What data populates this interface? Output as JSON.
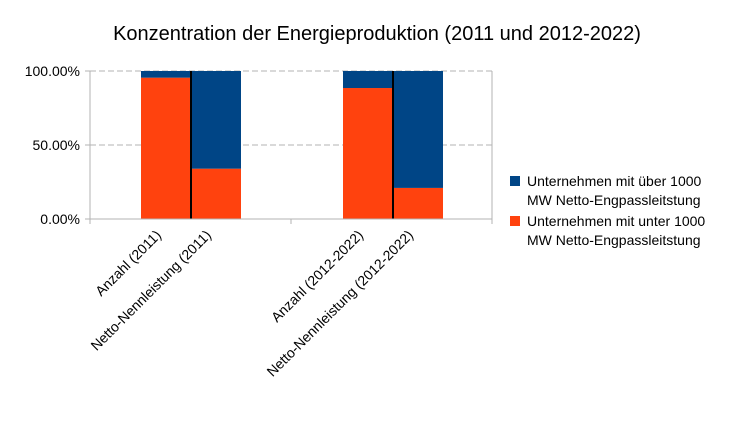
{
  "chart_data": {
    "type": "bar",
    "stacked": true,
    "title": "Konzentration  der Energieproduktion (2011 und 2012-2022)",
    "categories": [
      "Anzahl (2011)",
      "Netto-Nennleistung (2011)",
      "Anzahl (2012-2022)",
      "Netto-Nennleistung (2012-2022)"
    ],
    "y_tick_labels": [
      "100.00%",
      "50.00%",
      "0.00%"
    ],
    "ylim": [
      0,
      100
    ],
    "grid": true,
    "legend_position": "right",
    "series": [
      {
        "name_lines": [
          "Unternehmen mit unter 1000",
          "MW Netto-Engpassleitstung"
        ],
        "color": "#ff420e",
        "values": [
          95.5,
          34,
          88.5,
          21
        ]
      },
      {
        "name_lines": [
          "Unternehmen mit über 1000",
          "MW Netto-Engpassleitstung"
        ],
        "color": "#004586",
        "values": [
          4.5,
          66,
          11.5,
          79
        ]
      }
    ]
  }
}
